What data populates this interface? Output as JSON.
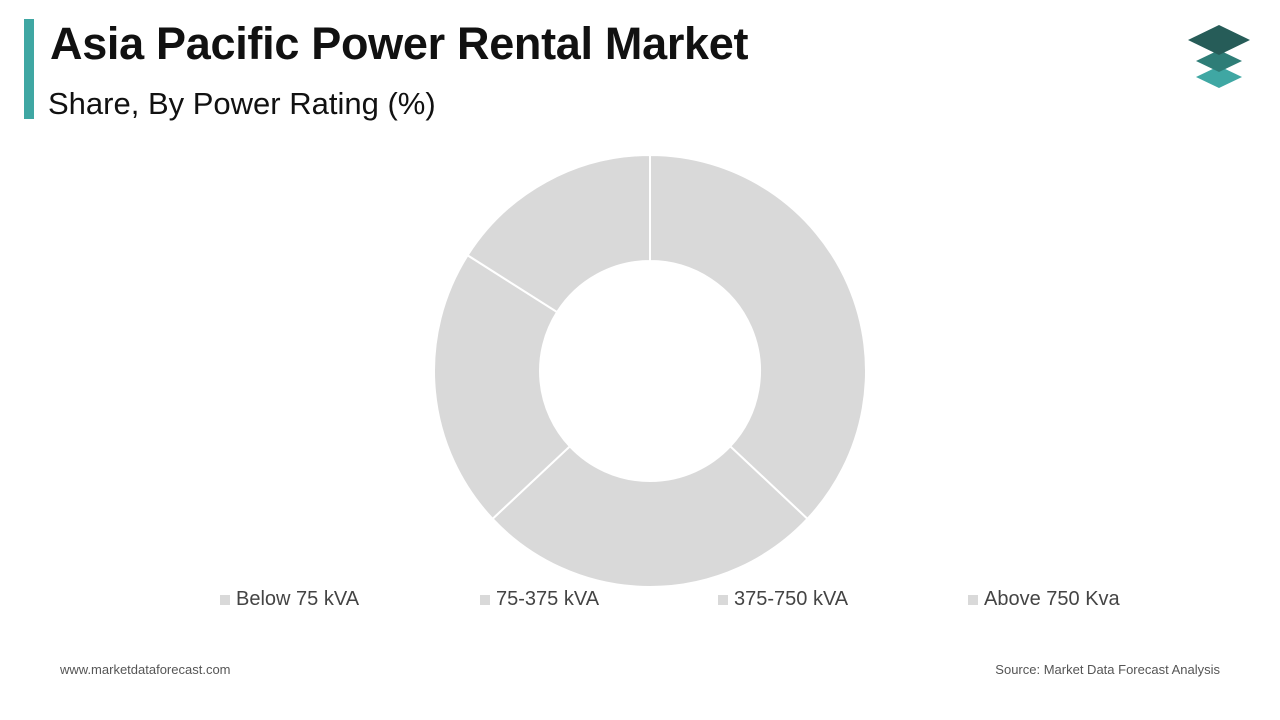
{
  "header": {
    "title": "Asia Pacific Power Rental Market",
    "subtitle": "Share, By Power Rating (%)",
    "accent_color": "#3fa7a3",
    "logo_icon": "stacked-layers-icon"
  },
  "chart_data": {
    "type": "pie",
    "donut": true,
    "title": "",
    "categories": [
      "Below 75 kVA",
      "75-375 kVA",
      "375-750 kVA",
      "Above 750 Kva"
    ],
    "values": [
      37,
      26,
      21,
      16
    ],
    "slice_color": "#d9d9d9",
    "legend_position": "bottom"
  },
  "footer": {
    "website": "www.marketdataforecast.com",
    "source": "Source: Market Data Forecast Analysis"
  }
}
